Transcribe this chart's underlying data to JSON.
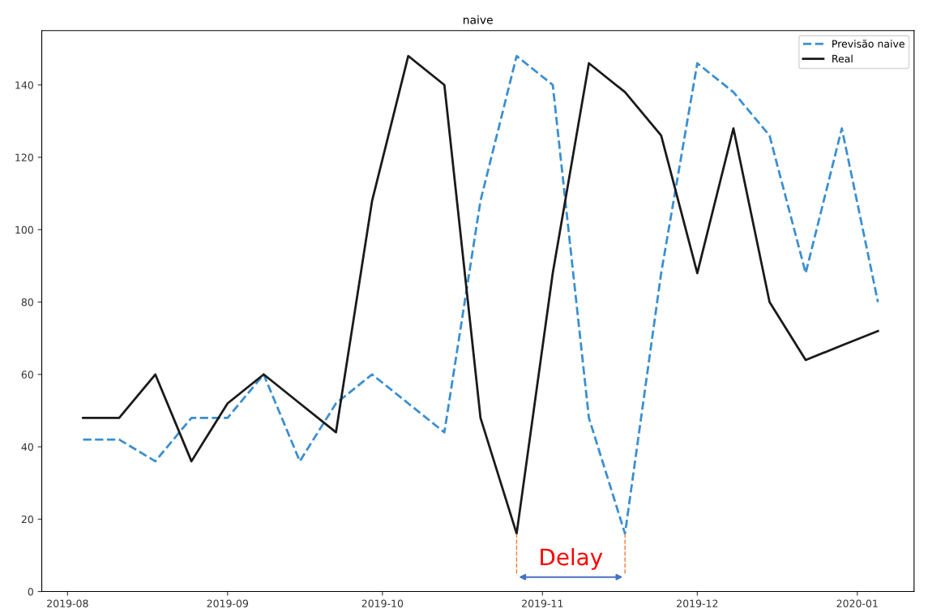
{
  "chart_data": {
    "type": "line",
    "title": "naive",
    "x": [
      "2019-08-04",
      "2019-08-11",
      "2019-08-18",
      "2019-08-25",
      "2019-09-01",
      "2019-09-08",
      "2019-09-15",
      "2019-09-22",
      "2019-09-29",
      "2019-10-06",
      "2019-10-13",
      "2019-10-20",
      "2019-10-27",
      "2019-11-03",
      "2019-11-10",
      "2019-11-17",
      "2019-11-24",
      "2019-12-01",
      "2019-12-08",
      "2019-12-15",
      "2019-12-22",
      "2019-12-29",
      "2020-01-05"
    ],
    "series": [
      {
        "name": "Previsão naive",
        "color": "#3a8fd0",
        "line_style": "dashed",
        "values": [
          42,
          42,
          36,
          48,
          48,
          60,
          36,
          52,
          60,
          52,
          44,
          108,
          148,
          140,
          48,
          16,
          88,
          146,
          138,
          126,
          88,
          128,
          80
        ]
      },
      {
        "name": "Real",
        "color": "#1a1a1a",
        "line_style": "solid",
        "values": [
          48,
          48,
          60,
          36,
          52,
          60,
          52,
          44,
          108,
          148,
          140,
          48,
          16,
          88,
          146,
          138,
          126,
          88,
          128,
          80,
          64,
          68,
          72
        ]
      }
    ],
    "annotations": [
      "Delay"
    ],
    "xlim": [
      "2019-07-27",
      "2020-01-12"
    ],
    "xticks": [
      {
        "value": "2019-08-01",
        "label": "2019-08"
      },
      {
        "value": "2019-09-01",
        "label": "2019-09"
      },
      {
        "value": "2019-10-01",
        "label": "2019-10"
      },
      {
        "value": "2019-11-01",
        "label": "2019-11"
      },
      {
        "value": "2019-12-01",
        "label": "2019-12"
      },
      {
        "value": "2020-01-01",
        "label": "2020-01"
      }
    ],
    "ylim": [
      0,
      155
    ],
    "yticks": [
      0,
      20,
      40,
      60,
      80,
      100,
      120,
      140
    ],
    "grid": false,
    "legend": "top right",
    "marker": "none"
  }
}
